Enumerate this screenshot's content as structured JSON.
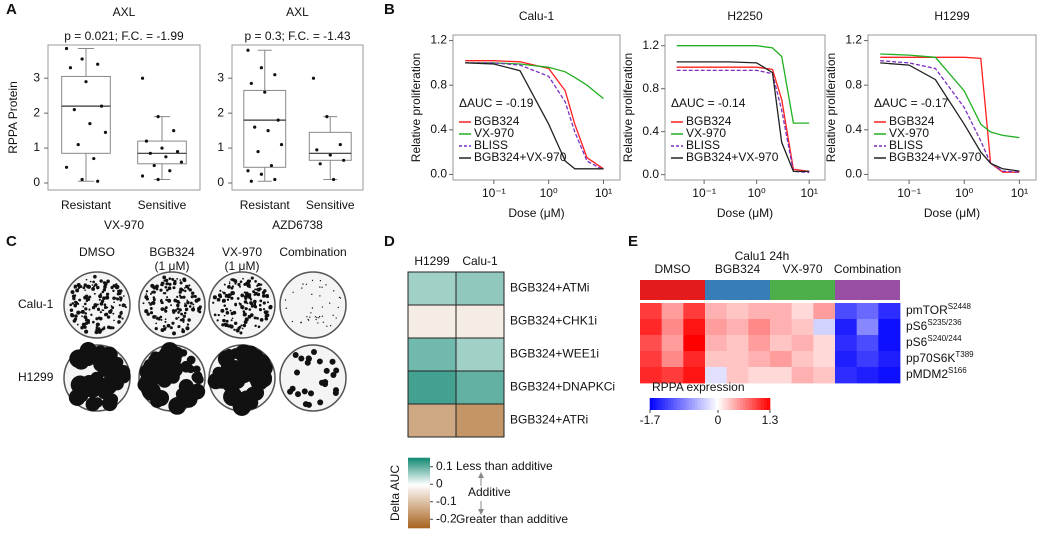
{
  "chart_data": [
    {
      "type": "box",
      "panel": "A",
      "title": "AXL",
      "subtitle": "p = 0.021; F.C. = -1.99",
      "ylabel": "RPPA Protein",
      "xlabel": "VX-970",
      "categories": [
        "Resistant",
        "Sensitive"
      ],
      "ylim": [
        -0.2,
        3.95
      ],
      "yticks": [
        0,
        1,
        2,
        3
      ],
      "boxes": [
        {
          "min": 0.05,
          "q1": 0.85,
          "median": 2.2,
          "q3": 3.05,
          "max": 3.85
        },
        {
          "min": 0.1,
          "q1": 0.55,
          "median": 0.85,
          "q3": 1.2,
          "max": 1.9
        }
      ],
      "points": [
        [
          3.85,
          3.55,
          3.4,
          3.3,
          2.9,
          2.2,
          2.1,
          1.7,
          1.45,
          1.1,
          0.7,
          0.45,
          0.1,
          0.05
        ],
        [
          3.0,
          1.9,
          1.5,
          1.2,
          1.0,
          0.9,
          0.85,
          0.75,
          0.6,
          0.5,
          0.35,
          0.2,
          0.1
        ]
      ]
    },
    {
      "type": "box",
      "title": "AXL",
      "subtitle": "p = 0.3; F.C. = -1.43",
      "xlabel": "AZD6738",
      "categories": [
        "Resistant",
        "Sensitive"
      ],
      "ylim": [
        -0.2,
        3.95
      ],
      "yticks": [
        0,
        1,
        2,
        3
      ],
      "boxes": [
        {
          "min": 0.05,
          "q1": 0.45,
          "median": 1.8,
          "q3": 2.65,
          "max": 3.8
        },
        {
          "min": 0.1,
          "q1": 0.65,
          "median": 0.85,
          "q3": 1.45,
          "max": 1.9
        }
      ],
      "points": [
        [
          3.8,
          3.3,
          3.1,
          2.85,
          2.6,
          1.8,
          1.6,
          1.5,
          1.1,
          0.9,
          0.5,
          0.35,
          0.25,
          0.1,
          0.05
        ],
        [
          3.0,
          1.9,
          1.1,
          0.95,
          0.8,
          0.65,
          0.55,
          0.1
        ]
      ]
    },
    {
      "type": "line",
      "panel": "B",
      "title": "Calu-1",
      "ylabel": "Relative proliferation",
      "xlabel": "Dose (μM)",
      "annotation": "ΔAUC = -0.19",
      "log_x": true,
      "x": [
        0.03,
        0.1,
        0.3,
        1,
        2,
        3,
        5,
        10
      ],
      "xlim": [
        0.018,
        20
      ],
      "xticks": [
        {
          "value": 0.1,
          "label": "10⁻¹"
        },
        {
          "value": 1,
          "label": "10⁰"
        },
        {
          "value": 10,
          "label": "10¹"
        }
      ],
      "ylim": [
        -0.05,
        1.25
      ],
      "yticks": [
        {
          "value": 0,
          "label": "0.0"
        },
        0.4,
        0.8,
        1.2
      ],
      "series": [
        {
          "name": "BGB324",
          "color": "#ff2020",
          "dash": false,
          "values": [
            1.02,
            1.02,
            1.01,
            0.95,
            0.75,
            0.45,
            0.15,
            0.05
          ]
        },
        {
          "name": "VX-970",
          "color": "#22b022",
          "dash": false,
          "values": [
            1.0,
            1.0,
            0.99,
            0.96,
            0.92,
            0.87,
            0.8,
            0.68
          ]
        },
        {
          "name": "BLISS",
          "color": "#7a2fc0",
          "dash": true,
          "values": [
            1.0,
            1.0,
            0.98,
            0.88,
            0.65,
            0.38,
            0.12,
            0.04
          ]
        },
        {
          "name": "BGB324+VX-970",
          "color": "#222222",
          "dash": false,
          "values": [
            1.0,
            0.99,
            0.93,
            0.45,
            0.12,
            0.05,
            0.05,
            0.05
          ]
        }
      ]
    },
    {
      "type": "line",
      "title": "H2250",
      "ylabel": "Relative proliferation",
      "xlabel": "Dose (μM)",
      "annotation": "ΔAUC = -0.14",
      "log_x": true,
      "x": [
        0.03,
        0.1,
        0.3,
        1,
        2,
        3,
        5,
        10
      ],
      "xlim": [
        0.018,
        20
      ],
      "xticks": [
        {
          "value": 0.1,
          "label": "10⁻¹"
        },
        {
          "value": 1,
          "label": "10⁰"
        },
        {
          "value": 10,
          "label": "10¹"
        }
      ],
      "ylim": [
        -0.05,
        1.3
      ],
      "yticks": [
        {
          "value": 0,
          "label": "0.0"
        },
        0.4,
        0.8,
        1.2
      ],
      "series": [
        {
          "name": "BGB324",
          "color": "#ff2020",
          "dash": false,
          "values": [
            1.0,
            1.0,
            1.0,
            1.0,
            0.98,
            0.7,
            0.05,
            0.03
          ]
        },
        {
          "name": "VX-970",
          "color": "#22b022",
          "dash": false,
          "values": [
            1.2,
            1.2,
            1.2,
            1.2,
            1.18,
            1.1,
            0.48,
            0.48
          ]
        },
        {
          "name": "BLISS",
          "color": "#7a2fc0",
          "dash": true,
          "values": [
            0.97,
            0.97,
            0.97,
            0.97,
            0.94,
            0.6,
            0.03,
            0.02
          ]
        },
        {
          "name": "BGB324+VX-970",
          "color": "#222222",
          "dash": false,
          "values": [
            1.05,
            1.05,
            1.05,
            1.04,
            0.95,
            0.3,
            0.03,
            0.03
          ]
        }
      ]
    },
    {
      "type": "line",
      "title": "H1299",
      "ylabel": "Relative proliferation",
      "xlabel": "Dose (μM)",
      "annotation": "ΔAUC = -0.17",
      "log_x": true,
      "x": [
        0.03,
        0.1,
        0.3,
        1,
        2,
        3,
        5,
        10
      ],
      "xlim": [
        0.018,
        20
      ],
      "xticks": [
        {
          "value": 0.1,
          "label": "10⁻¹"
        },
        {
          "value": 1,
          "label": "10⁰"
        },
        {
          "value": 10,
          "label": "10¹"
        }
      ],
      "ylim": [
        -0.05,
        1.25
      ],
      "yticks": [
        {
          "value": 0,
          "label": "0.0"
        },
        0.4,
        0.8,
        1.2
      ],
      "series": [
        {
          "name": "BGB324",
          "color": "#ff2020",
          "dash": false,
          "values": [
            1.05,
            1.05,
            1.05,
            1.05,
            1.04,
            0.1,
            0.02,
            0.02
          ]
        },
        {
          "name": "VX-970",
          "color": "#22b022",
          "dash": false,
          "values": [
            1.08,
            1.07,
            1.05,
            0.75,
            0.45,
            0.38,
            0.35,
            0.33
          ]
        },
        {
          "name": "BLISS",
          "color": "#7a2fc0",
          "dash": true,
          "values": [
            1.02,
            1.0,
            0.95,
            0.6,
            0.3,
            0.1,
            0.03,
            0.02
          ]
        },
        {
          "name": "BGB324+VX-970",
          "color": "#222222",
          "dash": false,
          "values": [
            1.0,
            0.98,
            0.85,
            0.45,
            0.2,
            0.1,
            0.05,
            0.03
          ]
        }
      ]
    },
    {
      "type": "image-grid",
      "panel": "C",
      "columns": [
        [
          "DMSO"
        ],
        [
          "BGB324",
          "(1 μM)"
        ],
        [
          "VX-970",
          "(1 μM)"
        ],
        [
          "Combination"
        ]
      ],
      "rows": [
        "Calu-1",
        "H1299"
      ]
    },
    {
      "type": "heatmap",
      "panel": "D",
      "columns": [
        "H1299",
        "Calu-1"
      ],
      "rows": [
        "BGB324+ATMi",
        "BGB324+CHK1i",
        "BGB324+WEE1i",
        "BGB324+DNAPKCi",
        "BGB324+ATRi"
      ],
      "values": [
        [
          0.06,
          0.07
        ],
        [
          -0.03,
          -0.03
        ],
        [
          0.09,
          0.06
        ],
        [
          0.12,
          0.1
        ],
        [
          -0.14,
          -0.17
        ]
      ],
      "colors": [
        "#a8631f",
        "#ffffff",
        "#138a74"
      ],
      "colorbar": {
        "title": "Delta AUC",
        "lim": [
          -0.25,
          0.15
        ],
        "ticks": [
          0.1,
          0,
          -0.1,
          -0.2
        ]
      },
      "annotations": [
        "Less than additive",
        "Additive",
        "Greater than additive"
      ]
    },
    {
      "type": "heatmap",
      "panel": "E",
      "title": "Calu1 24h",
      "groups": [
        {
          "name": "DMSO",
          "color": "#e41a1c"
        },
        {
          "name": "BGB324",
          "color": "#377eb8"
        },
        {
          "name": "VX-970",
          "color": "#4daf4a"
        },
        {
          "name": "Combination",
          "color": "#984ea3"
        }
      ],
      "rows": [
        {
          "name": "pmTOR",
          "site": "S2448"
        },
        {
          "name": "pS6",
          "site": "S235/236"
        },
        {
          "name": "pS6",
          "site": "S240/244"
        },
        {
          "name": "pp70S6K",
          "site": "T389"
        },
        {
          "name": "pMDM2",
          "site": "S166"
        }
      ],
      "values": [
        [
          1.0,
          0.5,
          1.0,
          0.4,
          0.3,
          0.4,
          0.4,
          0.2,
          0.5,
          -1.2,
          -1.0,
          -1.4
        ],
        [
          1.1,
          0.6,
          1.2,
          0.5,
          0.4,
          0.6,
          0.4,
          0.3,
          -0.3,
          -1.5,
          -0.8,
          -1.6
        ],
        [
          0.9,
          0.5,
          1.3,
          0.4,
          0.3,
          0.5,
          0.3,
          0.4,
          0.2,
          -1.4,
          -1.2,
          -1.6
        ],
        [
          1.0,
          0.6,
          1.1,
          0.3,
          0.3,
          0.4,
          0.5,
          0.3,
          0.2,
          -1.5,
          -1.3,
          -1.5
        ],
        [
          1.1,
          1.0,
          1.2,
          -0.2,
          0.3,
          0.2,
          0.2,
          0.4,
          0.3,
          -1.4,
          -1.5,
          -1.6
        ]
      ],
      "colors": [
        "#0000ff",
        "#ffffff",
        "#ff0000"
      ],
      "colorbar": {
        "title": "RPPA expression",
        "lim": [
          -1.7,
          1.3
        ],
        "ticks": [
          -1.7,
          0,
          1.3
        ]
      }
    }
  ]
}
